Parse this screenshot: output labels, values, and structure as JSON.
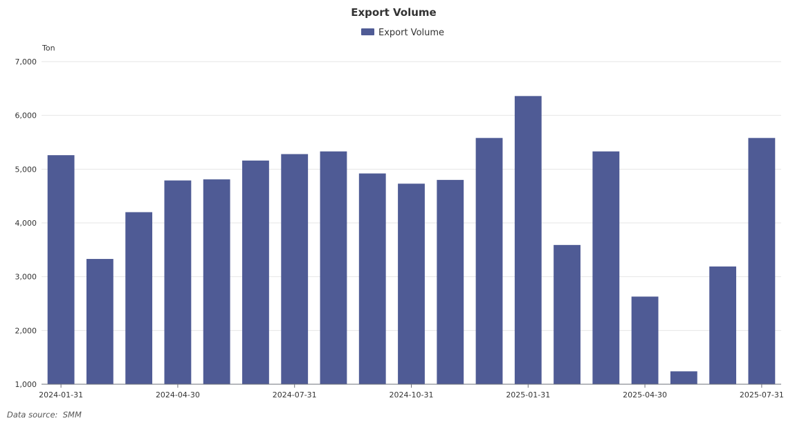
{
  "chart_data": {
    "type": "bar",
    "title": "Export Volume",
    "ylabel": "Ton",
    "xlabel": "",
    "ylim": [
      1000,
      7000
    ],
    "yticks": [
      1000,
      2000,
      3000,
      4000,
      5000,
      6000,
      7000
    ],
    "ytick_labels": [
      "1,000",
      "2,000",
      "3,000",
      "4,000",
      "5,000",
      "6,000",
      "7,000"
    ],
    "categories": [
      "2024-01-31",
      "2024-02-29",
      "2024-03-31",
      "2024-04-30",
      "2024-05-31",
      "2024-06-30",
      "2024-07-31",
      "2024-08-31",
      "2024-09-30",
      "2024-10-31",
      "2024-11-30",
      "2024-12-31",
      "2025-01-31",
      "2025-02-28",
      "2025-03-31",
      "2025-04-30",
      "2025-05-31",
      "2025-06-30",
      "2025-07-31"
    ],
    "xtick_labels": [
      "2024-01-31",
      "2024-04-30",
      "2024-07-31",
      "2024-10-31",
      "2025-01-31",
      "2025-04-30",
      "2025-07-31"
    ],
    "series": [
      {
        "name": "Export Volume",
        "color": "#4f5b95",
        "values": [
          5260,
          3330,
          4200,
          4790,
          4810,
          5160,
          5280,
          5330,
          4920,
          4730,
          4800,
          5580,
          6360,
          3590,
          5330,
          2630,
          1240,
          3190,
          5580
        ]
      }
    ],
    "legend_position": "top-center",
    "grid": true
  },
  "footer": {
    "source": "Data source:  SMM"
  }
}
